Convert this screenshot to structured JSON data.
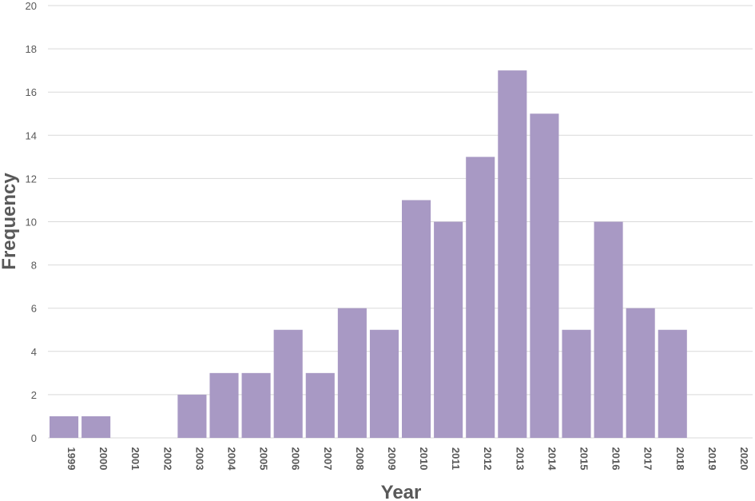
{
  "chart_data": {
    "type": "bar",
    "title": "",
    "xlabel": "Year",
    "ylabel": "Frequency",
    "ylim": [
      0,
      20
    ],
    "yticks": [
      0,
      2,
      4,
      6,
      8,
      10,
      12,
      14,
      16,
      18,
      20
    ],
    "grid": true,
    "legend": "none",
    "bar_color": "#a899c4",
    "categories": [
      "1999",
      "2000",
      "2001",
      "2002",
      "2003",
      "2004",
      "2005",
      "2006",
      "2007",
      "2008",
      "2009",
      "2010",
      "2011",
      "2012",
      "2013",
      "2014",
      "2015",
      "2016",
      "2017",
      "2018",
      "2019",
      "2020"
    ],
    "values": [
      1,
      1,
      0,
      0,
      2,
      3,
      3,
      5,
      3,
      6,
      5,
      11,
      10,
      13,
      17,
      15,
      5,
      10,
      6,
      5,
      0,
      0
    ]
  }
}
